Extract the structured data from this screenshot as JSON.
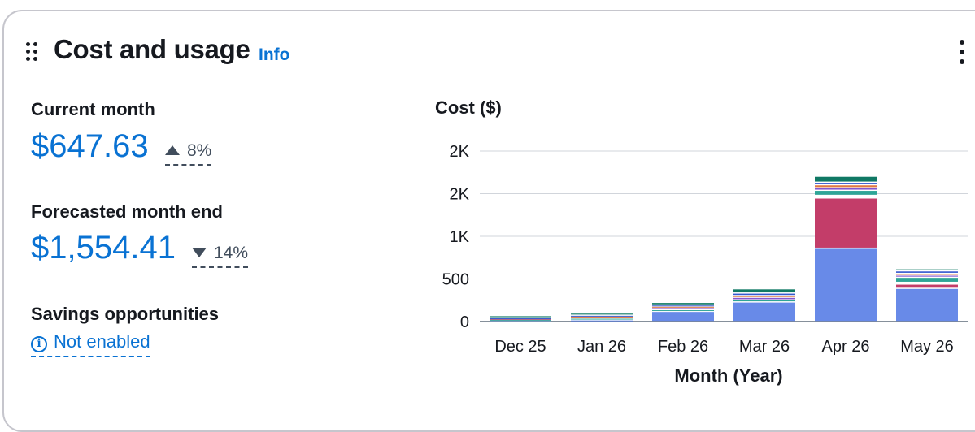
{
  "header": {
    "title": "Cost and usage",
    "info_label": "Info"
  },
  "current_month": {
    "label": "Current month",
    "value": "$647.63",
    "change": "8%",
    "direction": "up"
  },
  "forecast": {
    "label": "Forecasted month end",
    "value": "$1,554.41",
    "change": "14%",
    "direction": "down"
  },
  "savings": {
    "label": "Savings opportunities",
    "link": "Not enabled"
  },
  "chart_data": {
    "type": "bar",
    "stacked": true,
    "title": "Cost ($)",
    "xlabel": "Month (Year)",
    "ylabel": "Cost ($)",
    "categories": [
      "Dec 25",
      "Jan 26",
      "Feb 26",
      "Mar 26",
      "Apr 26",
      "May 26"
    ],
    "ytick_values": [
      0,
      500,
      1000,
      1500,
      2000
    ],
    "ytick_labels": [
      "0",
      "500",
      "1K",
      "2K",
      "2K"
    ],
    "ylim": [
      0,
      2000
    ],
    "grid": true,
    "series": [
      {
        "color": "#688ae8",
        "values": [
          10,
          20,
          120,
          230,
          860,
          390
        ]
      },
      {
        "color": "#c33d69",
        "values": [
          0,
          0,
          0,
          0,
          590,
          50
        ]
      },
      {
        "color": "#ffffff",
        "values": [
          0,
          0,
          0,
          0,
          30,
          20
        ]
      },
      {
        "color": "#2ea597",
        "values": [
          15,
          20,
          20,
          25,
          60,
          60
        ]
      },
      {
        "color": "#8456ce",
        "values": [
          10,
          15,
          25,
          30,
          30,
          25
        ]
      },
      {
        "color": "#e07941",
        "values": [
          5,
          10,
          15,
          20,
          35,
          20
        ]
      },
      {
        "color": "#3759ce",
        "values": [
          5,
          10,
          15,
          30,
          30,
          30
        ]
      },
      {
        "color": "#0f7864",
        "values": [
          25,
          25,
          30,
          50,
          70,
          25
        ]
      }
    ]
  },
  "colors": {
    "accent": "#0972d3",
    "text": "#16191f",
    "border": "#c6c6cd",
    "gridline": "#d1d5db"
  }
}
